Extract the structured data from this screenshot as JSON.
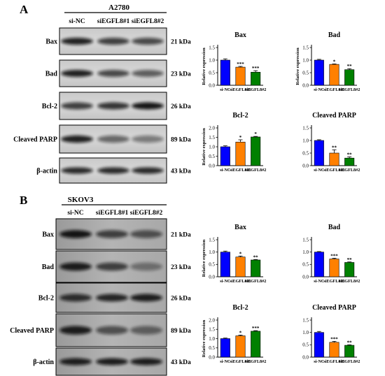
{
  "panels": [
    {
      "letter": "A",
      "cell_line": "A2780",
      "lanes": [
        "si-NC",
        "siEGFL8#1",
        "siEGFL8#2"
      ],
      "proteins": [
        {
          "name": "Bax",
          "kda": "21 kDa"
        },
        {
          "name": "Bad",
          "kda": "23 kDa"
        },
        {
          "name": "Bcl-2",
          "kda": "26 kDa"
        },
        {
          "name": "Cleaved PARP",
          "kda": "89 kDa"
        },
        {
          "name": "β-actin",
          "kda": "43 kDa"
        }
      ]
    },
    {
      "letter": "B",
      "cell_line": "SKOV3",
      "lanes": [
        "si-NC",
        "siEGFL8#1",
        "siEGFL8#2"
      ],
      "proteins": [
        {
          "name": "Bax",
          "kda": "21 kDa"
        },
        {
          "name": "Bad",
          "kda": "23 kDa"
        },
        {
          "name": "Bcl-2",
          "kda": "26 kDa"
        },
        {
          "name": "Cleaved PARP",
          "kda": "89 kDa"
        },
        {
          "name": "β-actin",
          "kda": "43 kDa"
        }
      ]
    }
  ],
  "colors": {
    "si-NC": "#0000ff",
    "siEGFL8#1": "#ff8000",
    "siEGFL8#2": "#008000"
  },
  "chart_data": [
    {
      "type": "bar",
      "title": "Bax",
      "ylabel": "Relative expression",
      "categories": [
        "si-NC",
        "siEGFL8#1",
        "siEGFL8#2"
      ],
      "values": [
        1.0,
        0.72,
        0.52
      ],
      "errors": [
        0.05,
        0.03,
        0.06
      ],
      "significance": [
        "",
        "***",
        "***"
      ],
      "ylim": [
        0,
        1.5
      ],
      "yticks": [
        "0.0",
        "0.5",
        "1.0",
        "1.5"
      ]
    },
    {
      "type": "bar",
      "title": "Bad",
      "ylabel": "Relative expression",
      "categories": [
        "si-NC",
        "siEGFL8#1",
        "siEGFL8#2"
      ],
      "values": [
        1.0,
        0.83,
        0.62
      ],
      "errors": [
        0.03,
        0.02,
        0.04
      ],
      "significance": [
        "",
        "*",
        "**"
      ],
      "ylim": [
        0,
        1.5
      ],
      "yticks": [
        "0.0",
        "0.5",
        "1.0",
        "1.5"
      ]
    },
    {
      "type": "bar",
      "title": "Bcl-2",
      "ylabel": "Relative expression",
      "categories": [
        "si-NC",
        "siEGFL8#1",
        "siEGFL8#2"
      ],
      "values": [
        1.0,
        1.25,
        1.52
      ],
      "errors": [
        0.05,
        0.12,
        0.03
      ],
      "significance": [
        "",
        "*",
        "*"
      ],
      "ylim": [
        0,
        2.0
      ],
      "yticks": [
        "0.0",
        "0.5",
        "1.0",
        "1.5",
        "2.0"
      ]
    },
    {
      "type": "bar",
      "title": "Cleaved PARP",
      "ylabel": "",
      "categories": [
        "si-NC",
        "siEGFL8#1",
        "siEGFL8#2"
      ],
      "values": [
        1.0,
        0.5,
        0.3
      ],
      "errors": [
        0.03,
        0.13,
        0.05
      ],
      "significance": [
        "",
        "**",
        "**"
      ],
      "ylim": [
        0,
        1.5
      ],
      "yticks": [
        "0.0",
        "0.5",
        "1.0",
        "1.5"
      ]
    },
    {
      "type": "bar",
      "title": "Bax",
      "ylabel": "Relative expression",
      "categories": [
        "si-NC",
        "siEGFL8#1",
        "siEGFL8#2"
      ],
      "values": [
        1.0,
        0.8,
        0.68
      ],
      "errors": [
        0.04,
        0.04,
        0.02
      ],
      "significance": [
        "",
        "*",
        "**"
      ],
      "ylim": [
        0,
        1.5
      ],
      "yticks": [
        "0.0",
        "0.5",
        "1.0",
        "1.5"
      ]
    },
    {
      "type": "bar",
      "title": "Bad",
      "ylabel": "",
      "categories": [
        "si-NC",
        "siEGFL8#1",
        "siEGFL8#2"
      ],
      "values": [
        1.0,
        0.72,
        0.58
      ],
      "errors": [
        0.02,
        0.03,
        0.02
      ],
      "significance": [
        "",
        "***",
        "**"
      ],
      "ylim": [
        0,
        1.5
      ],
      "yticks": [
        "0.0",
        "0.5",
        "1.0",
        "1.5"
      ]
    },
    {
      "type": "bar",
      "title": "Bcl-2",
      "ylabel": "Relative expression",
      "categories": [
        "si-NC",
        "siEGFL8#1",
        "siEGFL8#2"
      ],
      "values": [
        1.0,
        1.15,
        1.4
      ],
      "errors": [
        0.03,
        0.04,
        0.03
      ],
      "significance": [
        "",
        "*",
        "***"
      ],
      "ylim": [
        0,
        2.0
      ],
      "yticks": [
        "0.0",
        "0.5",
        "1.0",
        "1.5",
        "2.0"
      ]
    },
    {
      "type": "bar",
      "title": "Cleaved PARP",
      "ylabel": "",
      "categories": [
        "si-NC",
        "siEGFL8#1",
        "siEGFL8#2"
      ],
      "values": [
        1.0,
        0.6,
        0.48
      ],
      "errors": [
        0.04,
        0.04,
        0.02
      ],
      "significance": [
        "",
        "***",
        "**"
      ],
      "ylim": [
        0,
        1.5
      ],
      "yticks": [
        "0.0",
        "0.5",
        "1.0",
        "1.5"
      ]
    }
  ]
}
